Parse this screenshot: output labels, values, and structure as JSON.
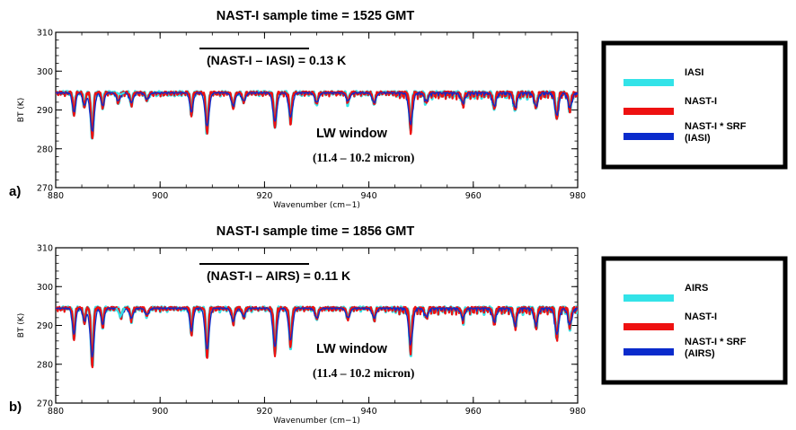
{
  "chart_data": [
    {
      "type": "line",
      "panel_label": "a)",
      "title": "NAST-I  sample time = 1525 GMT",
      "difference_label": "(NAST-I – IASI) = 0.13 K",
      "overbar_text": "NAST-I – IASI",
      "window_label": "LW window",
      "range_label": "(11.4 – 10.2 micron)",
      "xlabel": "Wavenumber (cm−1)",
      "ylabel": "BT (K)",
      "xlim": [
        880,
        980
      ],
      "ylim": [
        270,
        310
      ],
      "x_ticks": [
        "880",
        "900",
        "920",
        "940",
        "960",
        "980"
      ],
      "y_ticks": [
        "270",
        "280",
        "290",
        "300",
        "310"
      ],
      "baseline": 294.5,
      "lines": [
        {
          "x": 883.5,
          "depth": 6,
          "width": 0.25
        },
        {
          "x": 885.5,
          "depth": 4,
          "width": 0.25
        },
        {
          "x": 887.0,
          "depth": 12,
          "width": 0.3
        },
        {
          "x": 889.0,
          "depth": 4,
          "width": 0.25
        },
        {
          "x": 892.0,
          "depth": 2.5,
          "width": 0.3
        },
        {
          "x": 894.5,
          "depth": 3,
          "width": 0.3
        },
        {
          "x": 897.5,
          "depth": 2,
          "width": 0.3
        },
        {
          "x": 906.0,
          "depth": 6,
          "width": 0.25
        },
        {
          "x": 909.0,
          "depth": 10.5,
          "width": 0.3
        },
        {
          "x": 914.0,
          "depth": 4,
          "width": 0.3
        },
        {
          "x": 916.0,
          "depth": 2.5,
          "width": 0.3
        },
        {
          "x": 922.0,
          "depth": 9,
          "width": 0.3
        },
        {
          "x": 925.0,
          "depth": 7.5,
          "width": 0.3
        },
        {
          "x": 930.0,
          "depth": 3,
          "width": 0.3
        },
        {
          "x": 936.0,
          "depth": 2.5,
          "width": 0.3
        },
        {
          "x": 941.0,
          "depth": 3,
          "width": 0.3
        },
        {
          "x": 948.0,
          "depth": 9.5,
          "width": 0.3
        },
        {
          "x": 951.0,
          "depth": 2.5,
          "width": 0.3
        },
        {
          "x": 958.0,
          "depth": 3,
          "width": 0.3
        },
        {
          "x": 964.0,
          "depth": 4,
          "width": 0.3
        },
        {
          "x": 968.0,
          "depth": 4.5,
          "width": 0.3
        },
        {
          "x": 972.0,
          "depth": 4,
          "width": 0.3
        },
        {
          "x": 976.0,
          "depth": 7,
          "width": 0.3
        },
        {
          "x": 978.5,
          "depth": 4.5,
          "width": 0.3
        }
      ],
      "series": [
        {
          "name": "IASI",
          "color": "#33e3e8"
        },
        {
          "name": "NAST-I",
          "color": "#ee1111"
        },
        {
          "name": "NAST-I * SRF\n(IASI)",
          "color": "#0a2bcc"
        }
      ],
      "legend_position": "right"
    },
    {
      "type": "line",
      "panel_label": "b)",
      "title": "NAST-I  sample time = 1856 GMT",
      "difference_label": "(NAST-I – AIRS) = 0.11 K",
      "overbar_text": "NAST-I – AIRS",
      "window_label": "LW window",
      "range_label": "(11.4 – 10.2 micron)",
      "xlabel": "Wavenumber (cm−1)",
      "ylabel": "BT (K)",
      "xlim": [
        880,
        980
      ],
      "ylim": [
        270,
        310
      ],
      "x_ticks": [
        "880",
        "900",
        "920",
        "940",
        "960",
        "980"
      ],
      "y_ticks": [
        "270",
        "280",
        "290",
        "300",
        "310"
      ],
      "baseline": 294.5,
      "lines": [
        {
          "x": 883.5,
          "depth": 8,
          "width": 0.25
        },
        {
          "x": 885.5,
          "depth": 4,
          "width": 0.25
        },
        {
          "x": 887.0,
          "depth": 15,
          "width": 0.3
        },
        {
          "x": 889.0,
          "depth": 5,
          "width": 0.25
        },
        {
          "x": 892.5,
          "depth": 2.5,
          "width": 0.3
        },
        {
          "x": 894.5,
          "depth": 3,
          "width": 0.3
        },
        {
          "x": 897.5,
          "depth": 2,
          "width": 0.3
        },
        {
          "x": 906.0,
          "depth": 7,
          "width": 0.25
        },
        {
          "x": 909.0,
          "depth": 13,
          "width": 0.3
        },
        {
          "x": 914.0,
          "depth": 4,
          "width": 0.3
        },
        {
          "x": 916.0,
          "depth": 2.5,
          "width": 0.3
        },
        {
          "x": 922.0,
          "depth": 12,
          "width": 0.3
        },
        {
          "x": 925.0,
          "depth": 10,
          "width": 0.3
        },
        {
          "x": 930.0,
          "depth": 3,
          "width": 0.3
        },
        {
          "x": 936.0,
          "depth": 3,
          "width": 0.3
        },
        {
          "x": 941.0,
          "depth": 3,
          "width": 0.3
        },
        {
          "x": 948.0,
          "depth": 11,
          "width": 0.3
        },
        {
          "x": 951.0,
          "depth": 2.5,
          "width": 0.3
        },
        {
          "x": 958.0,
          "depth": 3,
          "width": 0.3
        },
        {
          "x": 964.0,
          "depth": 4,
          "width": 0.3
        },
        {
          "x": 968.0,
          "depth": 5,
          "width": 0.3
        },
        {
          "x": 972.0,
          "depth": 5,
          "width": 0.3
        },
        {
          "x": 976.0,
          "depth": 8,
          "width": 0.3
        },
        {
          "x": 978.5,
          "depth": 5,
          "width": 0.3
        }
      ],
      "series": [
        {
          "name": "AIRS",
          "color": "#33e3e8"
        },
        {
          "name": "NAST-I",
          "color": "#ee1111"
        },
        {
          "name": "NAST-I * SRF\n(AIRS)",
          "color": "#0a2bcc"
        }
      ],
      "legend_position": "right"
    }
  ]
}
